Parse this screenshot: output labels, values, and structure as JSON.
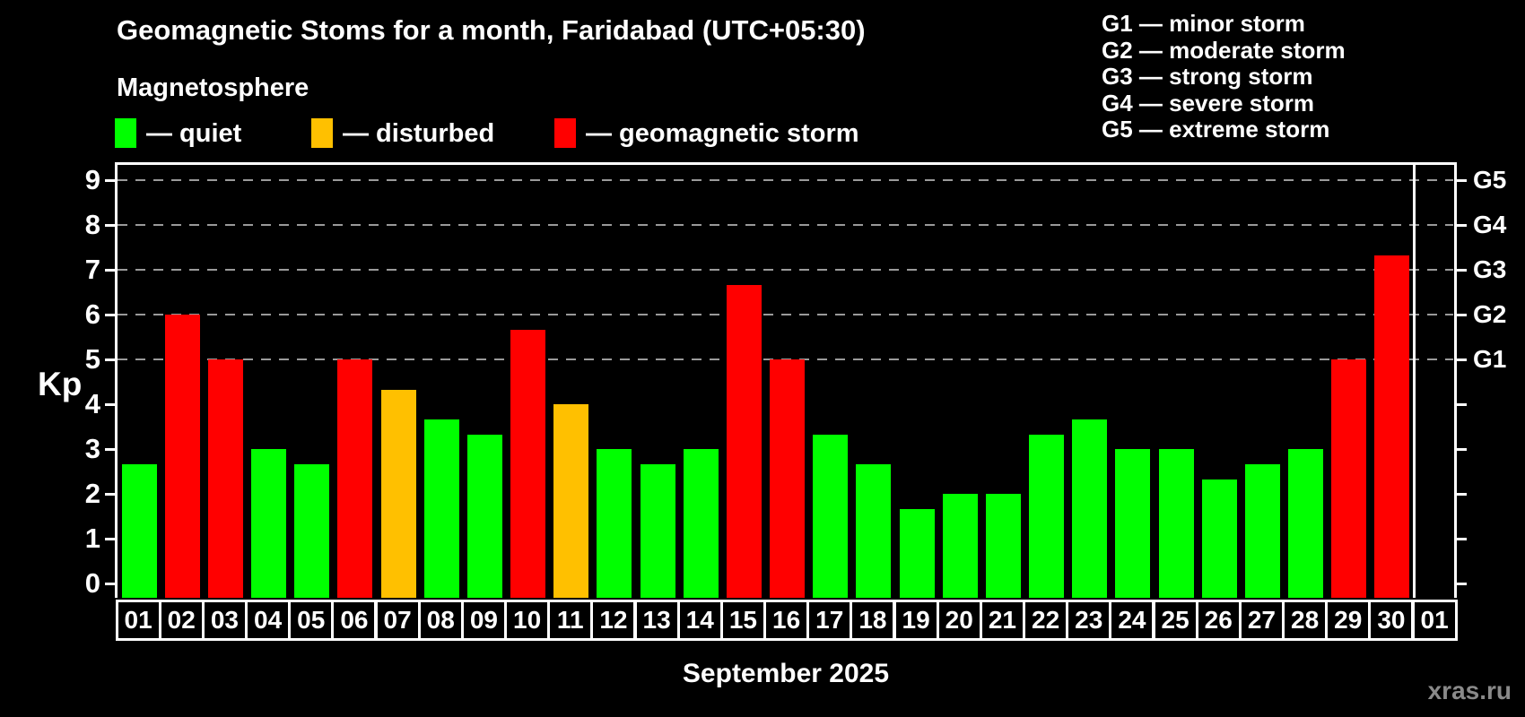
{
  "title": "Geomagnetic Stoms for a month, Faridabad (UTC+05:30)",
  "subtitle": "Magnetosphere",
  "legend": {
    "items": [
      {
        "status": "quiet",
        "label": "— quiet"
      },
      {
        "status": "disturbed",
        "label": "— disturbed"
      },
      {
        "status": "storm",
        "label": "— geomagnetic storm"
      }
    ]
  },
  "g_scale_legend": [
    "G1 — minor storm",
    "G2 — moderate storm",
    "G3 — strong storm",
    "G4 — severe storm",
    "G5 — extreme storm"
  ],
  "colors": {
    "background": "#000000",
    "quiet": "#00ff00",
    "disturbed": "#ffc000",
    "storm": "#ff0000",
    "grid": "#9a9a9a",
    "axis": "#ffffff",
    "text": "#ffffff",
    "watermark": "#8a8a8a"
  },
  "watermark": "xras.ru",
  "chart_data": {
    "type": "bar",
    "title": "Geomagnetic Stoms for a month, Faridabad (UTC+05:30)",
    "xlabel": "September 2025",
    "ylabel": "Kp",
    "ylim": [
      0,
      9
    ],
    "y_ticks": [
      0,
      1,
      2,
      3,
      4,
      5,
      6,
      7,
      8,
      9
    ],
    "gridline_levels": [
      5,
      6,
      7,
      8,
      9
    ],
    "grid_style": "dashed",
    "legend_position": "top-left",
    "right_axis_labels": [
      {
        "text": "G1",
        "kp": 5
      },
      {
        "text": "G2",
        "kp": 6
      },
      {
        "text": "G3",
        "kp": 7
      },
      {
        "text": "G4",
        "kp": 8
      },
      {
        "text": "G5",
        "kp": 9
      }
    ],
    "x_categories": [
      "01",
      "02",
      "03",
      "04",
      "05",
      "06",
      "07",
      "08",
      "09",
      "10",
      "11",
      "12",
      "13",
      "14",
      "15",
      "16",
      "17",
      "18",
      "19",
      "20",
      "21",
      "22",
      "23",
      "24",
      "25",
      "26",
      "27",
      "28",
      "29",
      "30",
      "01"
    ],
    "days": [
      {
        "day": "01",
        "kp": 2.67,
        "status": "quiet"
      },
      {
        "day": "02",
        "kp": 6.0,
        "status": "storm"
      },
      {
        "day": "03",
        "kp": 5.0,
        "status": "storm"
      },
      {
        "day": "04",
        "kp": 3.0,
        "status": "quiet"
      },
      {
        "day": "05",
        "kp": 2.67,
        "status": "quiet"
      },
      {
        "day": "06",
        "kp": 5.0,
        "status": "storm"
      },
      {
        "day": "07",
        "kp": 4.33,
        "status": "disturbed"
      },
      {
        "day": "08",
        "kp": 3.67,
        "status": "quiet"
      },
      {
        "day": "09",
        "kp": 3.33,
        "status": "quiet"
      },
      {
        "day": "10",
        "kp": 5.67,
        "status": "storm"
      },
      {
        "day": "11",
        "kp": 4.0,
        "status": "disturbed"
      },
      {
        "day": "12",
        "kp": 3.0,
        "status": "quiet"
      },
      {
        "day": "13",
        "kp": 2.67,
        "status": "quiet"
      },
      {
        "day": "14",
        "kp": 3.0,
        "status": "quiet"
      },
      {
        "day": "15",
        "kp": 6.67,
        "status": "storm"
      },
      {
        "day": "16",
        "kp": 5.0,
        "status": "storm"
      },
      {
        "day": "17",
        "kp": 3.33,
        "status": "quiet"
      },
      {
        "day": "18",
        "kp": 2.67,
        "status": "quiet"
      },
      {
        "day": "19",
        "kp": 1.67,
        "status": "quiet"
      },
      {
        "day": "20",
        "kp": 2.0,
        "status": "quiet"
      },
      {
        "day": "21",
        "kp": 2.0,
        "status": "quiet"
      },
      {
        "day": "22",
        "kp": 3.33,
        "status": "quiet"
      },
      {
        "day": "23",
        "kp": 3.67,
        "status": "quiet"
      },
      {
        "day": "24",
        "kp": 3.0,
        "status": "quiet"
      },
      {
        "day": "25",
        "kp": 3.0,
        "status": "quiet"
      },
      {
        "day": "26",
        "kp": 2.33,
        "status": "quiet"
      },
      {
        "day": "27",
        "kp": 2.67,
        "status": "quiet"
      },
      {
        "day": "28",
        "kp": 3.0,
        "status": "quiet"
      },
      {
        "day": "29",
        "kp": 5.0,
        "status": "storm"
      },
      {
        "day": "30",
        "kp": 7.33,
        "status": "storm"
      }
    ]
  }
}
